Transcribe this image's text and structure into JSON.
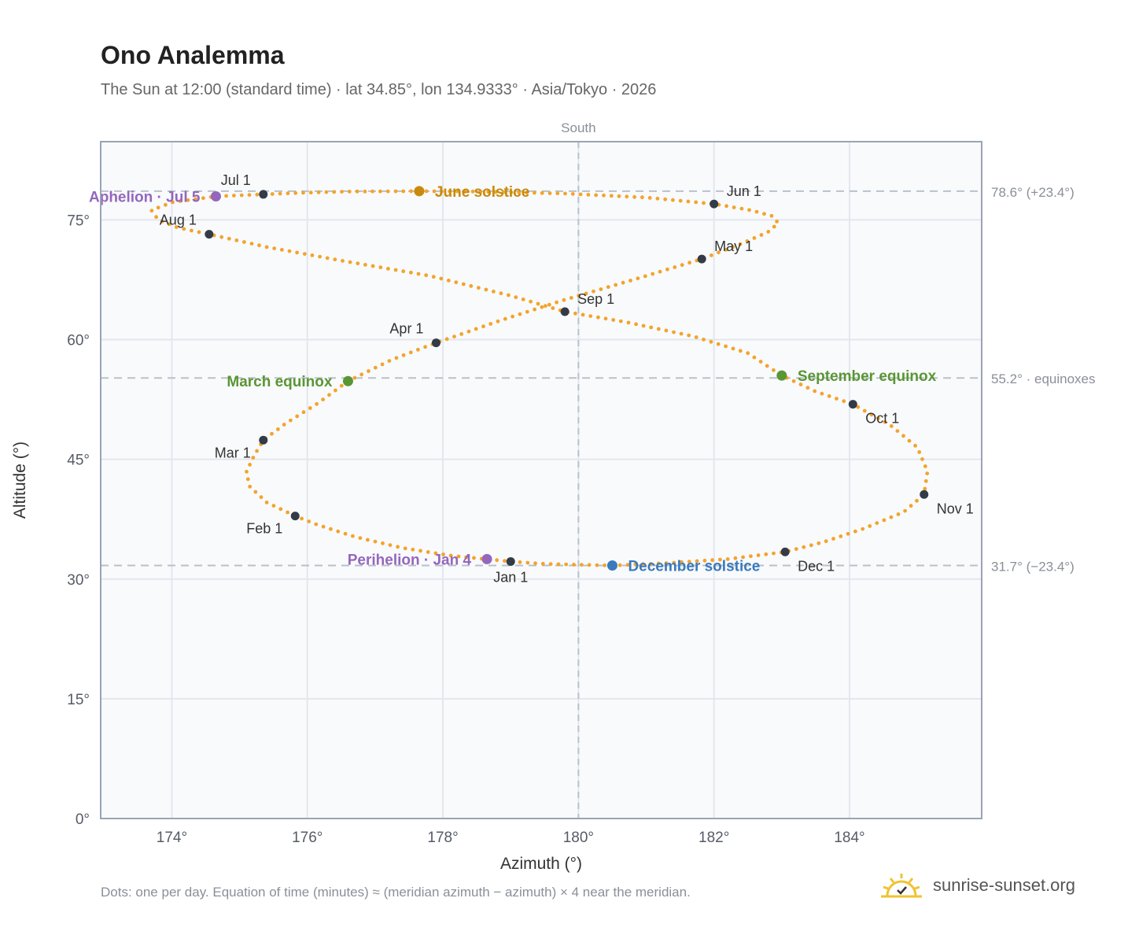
{
  "header": {
    "title": "Ono Analemma",
    "subtitle": "The Sun at 12:00 (standard time) · lat 34.85°, lon 134.9333° · Asia/Tokyo · 2026"
  },
  "footer": {
    "note": "Dots: one per day. Equation of time (minutes) ≈ (meridian azimuth − azimuth) × 4 near the meridian.",
    "brand": "sunrise-sunset.org",
    "brand_icon": "sun-check-icon"
  },
  "colors": {
    "path": "#f2a42b",
    "month_marker": "#333b47",
    "aphelion": "#9467bd",
    "june_solstice": "#c98a0c",
    "equinox": "#5a9634",
    "december_solstice": "#3a7abd",
    "grid": "#e3e7ed",
    "plot_bg": "#f9fafc",
    "frame": "#9aa4b2",
    "ref_line": "#b8c2cc"
  },
  "chart_data": {
    "type": "scatter",
    "xlabel": "Azimuth (°)",
    "ylabel": "Altitude (°)",
    "xlim": [
      172.95,
      185.95
    ],
    "ylim": [
      0,
      84.8
    ],
    "xticks": [
      174,
      176,
      178,
      180,
      182,
      184
    ],
    "xtick_labels": [
      "174°",
      "176°",
      "178°",
      "180°",
      "182°",
      "184°"
    ],
    "yticks": [
      0,
      15,
      30,
      45,
      60,
      75
    ],
    "ytick_labels": [
      "0°",
      "15°",
      "30°",
      "45°",
      "60°",
      "75°"
    ],
    "grid": true,
    "meridian": {
      "azimuth": 180,
      "label": "South"
    },
    "reference_lines": [
      {
        "altitude": 78.6,
        "label": "78.6° (+23.4°)"
      },
      {
        "altitude": 55.2,
        "label": "55.2° · equinoxes"
      },
      {
        "altitude": 31.7,
        "label": "31.7° (−23.4°)"
      }
    ],
    "path_points": [
      [
        180.5,
        31.7
      ],
      [
        179.5,
        31.9
      ],
      [
        179.0,
        32.2
      ],
      [
        178.15,
        32.9
      ],
      [
        177.4,
        33.9
      ],
      [
        176.7,
        35.3
      ],
      [
        176.15,
        36.8
      ],
      [
        175.82,
        37.9
      ],
      [
        175.4,
        39.6
      ],
      [
        175.15,
        41.6
      ],
      [
        175.1,
        43.4
      ],
      [
        175.21,
        45.4
      ],
      [
        175.35,
        47.4
      ],
      [
        175.68,
        49.5
      ],
      [
        176.15,
        52.0
      ],
      [
        176.6,
        54.8
      ],
      [
        177.25,
        57.5
      ],
      [
        177.9,
        59.6
      ],
      [
        178.85,
        62.4
      ],
      [
        179.8,
        65.0
      ],
      [
        180.85,
        67.6
      ],
      [
        181.82,
        70.1
      ],
      [
        182.4,
        72.0
      ],
      [
        182.8,
        73.5
      ],
      [
        182.95,
        74.6
      ],
      [
        182.85,
        75.5
      ],
      [
        182.55,
        76.2
      ],
      [
        182.0,
        77.0
      ],
      [
        181.0,
        77.8
      ],
      [
        179.8,
        78.3
      ],
      [
        178.5,
        78.55
      ],
      [
        177.65,
        78.6
      ],
      [
        176.6,
        78.55
      ],
      [
        175.95,
        78.4
      ],
      [
        175.35,
        78.2
      ],
      [
        174.65,
        77.95
      ],
      [
        174.0,
        77.2
      ],
      [
        173.7,
        76.2
      ],
      [
        173.8,
        75.0
      ],
      [
        174.1,
        74.0
      ],
      [
        174.55,
        73.2
      ],
      [
        175.4,
        71.6
      ],
      [
        176.5,
        69.9
      ],
      [
        177.8,
        68.0
      ],
      [
        179.0,
        65.5
      ],
      [
        179.8,
        63.5
      ],
      [
        180.7,
        62.2
      ],
      [
        181.7,
        60.4
      ],
      [
        182.5,
        58.3
      ],
      [
        183.0,
        55.5
      ],
      [
        183.5,
        53.5
      ],
      [
        184.05,
        51.9
      ],
      [
        184.6,
        49.3
      ],
      [
        185.0,
        46.5
      ],
      [
        185.15,
        43.5
      ],
      [
        185.1,
        40.6
      ],
      [
        184.8,
        38.4
      ],
      [
        184.2,
        36.3
      ],
      [
        183.6,
        34.6
      ],
      [
        183.05,
        33.4
      ],
      [
        182.2,
        32.5
      ],
      [
        181.3,
        32.0
      ],
      [
        180.5,
        31.7
      ]
    ],
    "month_markers": [
      {
        "label": "Jan 1",
        "az": 179.0,
        "alt": 32.2,
        "pos": "below"
      },
      {
        "label": "Feb 1",
        "az": 175.82,
        "alt": 37.9,
        "pos": "below-left"
      },
      {
        "label": "Mar 1",
        "az": 175.35,
        "alt": 47.4,
        "pos": "below-left"
      },
      {
        "label": "Apr 1",
        "az": 177.9,
        "alt": 59.6,
        "pos": "above-left"
      },
      {
        "label": "May 1",
        "az": 181.82,
        "alt": 70.1,
        "pos": "above-right"
      },
      {
        "label": "Jun 1",
        "az": 182.0,
        "alt": 77.0,
        "pos": "above-right"
      },
      {
        "label": "Jul 1",
        "az": 175.35,
        "alt": 78.2,
        "pos": "above-left"
      },
      {
        "label": "Aug 1",
        "az": 174.55,
        "alt": 73.2,
        "pos": "above-left"
      },
      {
        "label": "Sep 1",
        "az": 179.8,
        "alt": 63.5,
        "pos": "above-right"
      },
      {
        "label": "Oct 1",
        "az": 184.05,
        "alt": 51.9,
        "pos": "below-right"
      },
      {
        "label": "Nov 1",
        "az": 185.1,
        "alt": 40.6,
        "pos": "below-right"
      },
      {
        "label": "Dec 1",
        "az": 183.05,
        "alt": 33.4,
        "pos": "below-right"
      }
    ],
    "events": [
      {
        "label": "Aphelion · Jul 5",
        "az": 174.65,
        "alt": 77.95,
        "color_key": "aphelion",
        "side": "left"
      },
      {
        "label": "June solstice",
        "az": 177.65,
        "alt": 78.6,
        "color_key": "june_solstice",
        "side": "right"
      },
      {
        "label": "March equinox",
        "az": 176.6,
        "alt": 54.8,
        "color_key": "equinox",
        "side": "left"
      },
      {
        "label": "September equinox",
        "az": 183.0,
        "alt": 55.5,
        "color_key": "equinox",
        "side": "right"
      },
      {
        "label": "Perihelion · Jan 4",
        "az": 178.65,
        "alt": 32.5,
        "color_key": "aphelion",
        "side": "left"
      },
      {
        "label": "December solstice",
        "az": 180.5,
        "alt": 31.7,
        "color_key": "december_solstice",
        "side": "right"
      }
    ]
  }
}
